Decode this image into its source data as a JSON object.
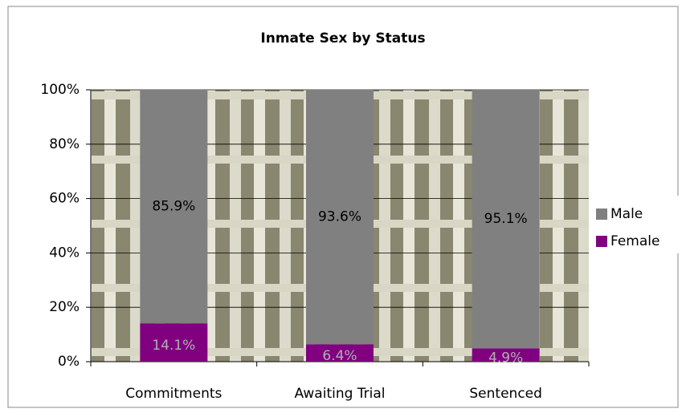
{
  "chart_data": {
    "type": "stacked_bar",
    "title": "Inmate Sex by Status",
    "categories": [
      "Commitments",
      "Awaiting Trial",
      "Sentenced"
    ],
    "series": [
      {
        "name": "Male",
        "color": "#808080",
        "values": [
          85.9,
          93.6,
          95.1
        ],
        "value_labels": [
          "85.9%",
          "93.6%",
          "95.1%"
        ]
      },
      {
        "name": "Female",
        "color": "#800080",
        "values": [
          14.1,
          6.4,
          4.9
        ],
        "value_labels": [
          "14.1%",
          "6.4%",
          "4.9%"
        ]
      }
    ],
    "ylim": [
      0,
      100
    ],
    "yticks": [
      {
        "value": 0,
        "label": "0%"
      },
      {
        "value": 20,
        "label": "20%"
      },
      {
        "value": 40,
        "label": "40%"
      },
      {
        "value": 60,
        "label": "60%"
      },
      {
        "value": 80,
        "label": "80%"
      },
      {
        "value": 100,
        "label": "100%"
      }
    ],
    "grid": true,
    "legend": "right"
  }
}
